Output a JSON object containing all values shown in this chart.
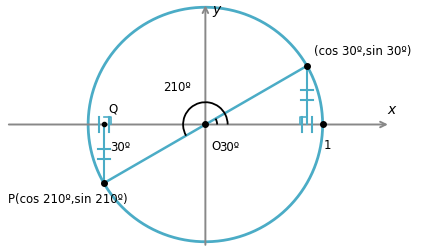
{
  "circle_color": "#4bacc6",
  "circle_lw": 2.0,
  "axis_color": "#888888",
  "line_color": "#4bacc6",
  "dot_color": "black",
  "cos30": 0.8660254,
  "sin30": 0.5,
  "cos210": -0.8660254,
  "sin210": -0.5,
  "tick_color": "#4bacc6",
  "xlabel": "x",
  "ylabel": "y",
  "label_O": "O",
  "label_1": "1",
  "label_Q": "Q",
  "label_P": "P(cos 210º,sin 210º)",
  "label_point30": "(cos 30º,sin 30º)",
  "label_30deg_near_O": "30º",
  "label_30deg_near_Q": "30º",
  "label_210deg": "210º",
  "fontsize": 8.5,
  "xlim": [
    -1.7,
    1.6
  ],
  "ylim": [
    -1.05,
    1.05
  ]
}
